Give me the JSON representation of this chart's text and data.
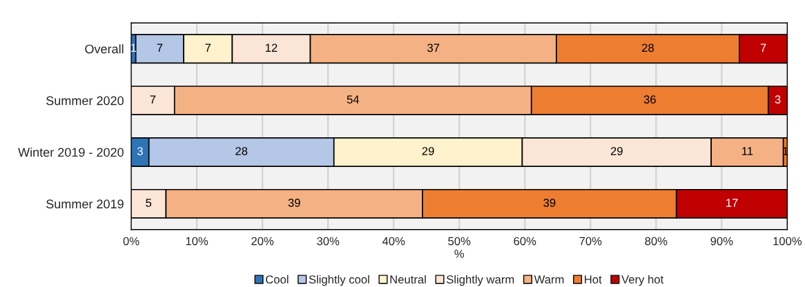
{
  "chart_data": {
    "type": "bar",
    "orientation": "horizontal",
    "stacked": true,
    "xlabel": "%",
    "categories": [
      "Overall",
      "Summer 2020",
      "Winter 2019 - 2020",
      "Summer 2019"
    ],
    "series": [
      {
        "name": "Cool",
        "color": "#2e75b6",
        "values": [
          0.7,
          null,
          2.7,
          null
        ],
        "value_labels": [
          "1",
          null,
          "3",
          null
        ]
      },
      {
        "name": "Slightly cool",
        "color": "#b4c7e7",
        "values": [
          7.3,
          null,
          28.2,
          null
        ],
        "value_labels": [
          "7",
          null,
          "28",
          null
        ]
      },
      {
        "name": "Neutral",
        "color": "#fff2cc",
        "values": [
          7.4,
          null,
          28.7,
          null
        ],
        "value_labels": [
          "7",
          null,
          "29",
          null
        ]
      },
      {
        "name": "Slightly warm",
        "color": "#fbe5d6",
        "values": [
          11.9,
          6.6,
          28.8,
          5.3
        ],
        "value_labels": [
          "12",
          "7",
          "29",
          "5"
        ]
      },
      {
        "name": "Warm",
        "color": "#f4b183",
        "values": [
          37.5,
          54.4,
          11.0,
          39.1
        ],
        "value_labels": [
          "37",
          "54",
          "11",
          "39"
        ]
      },
      {
        "name": "Hot",
        "color": "#ed7d31",
        "values": [
          27.9,
          36.1,
          0.6,
          38.7
        ],
        "value_labels": [
          "28",
          "36",
          "1",
          "39"
        ]
      },
      {
        "name": "Very hot",
        "color": "#c00000",
        "values": [
          7.3,
          2.9,
          null,
          16.9
        ],
        "value_labels": [
          "7",
          "3",
          null,
          "17"
        ]
      }
    ],
    "xlim": [
      0,
      100
    ],
    "xticks": [
      {
        "value": 0,
        "label": "0%"
      },
      {
        "value": 10,
        "label": "10%"
      },
      {
        "value": 20,
        "label": "20%"
      },
      {
        "value": 30,
        "label": "30%"
      },
      {
        "value": 40,
        "label": "40%"
      },
      {
        "value": 50,
        "label": "50%"
      },
      {
        "value": 60,
        "label": "60%"
      },
      {
        "value": 70,
        "label": "70%"
      },
      {
        "value": 80,
        "label": "80%"
      },
      {
        "value": 90,
        "label": "90%"
      },
      {
        "value": 100,
        "label": "100%"
      }
    ],
    "grid": "x",
    "legend": "bottom"
  }
}
